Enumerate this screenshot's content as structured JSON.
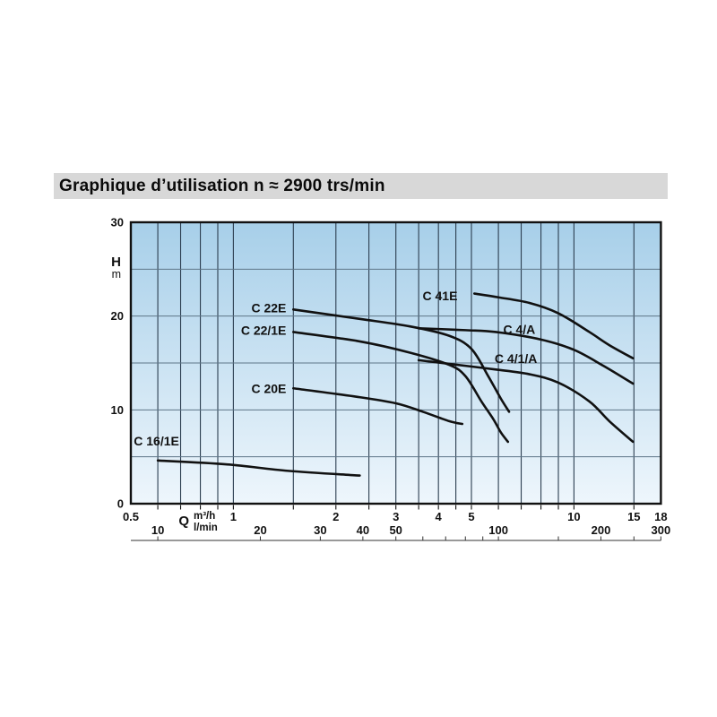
{
  "title": "Graphique d’utilisation n ≈ 2900 trs/min",
  "colors": {
    "title_bg": "#d8d8d8",
    "text": "#111111",
    "plot_gradient_top": "#a7cfe9",
    "plot_gradient_bottom": "#eef6fc",
    "grid_vertical": "#2c3e50",
    "grid_horizontal": "#5d7587",
    "plot_border": "#111111",
    "curve": "#111111",
    "ruler": "#333333"
  },
  "chart_data": {
    "type": "line",
    "title": "Graphique d’utilisation n ≈ 2900 trs/min",
    "x_axis": {
      "label": "Q",
      "unit_top": "m³/h",
      "unit_bottom": "l/min",
      "scale": "log",
      "range_m3h": [
        0.5,
        18
      ],
      "ticks_m3h": [
        0.5,
        1,
        2,
        3,
        4,
        5,
        10,
        15,
        18
      ],
      "ticks_lmin": [
        10,
        20,
        30,
        40,
        50,
        100,
        200,
        300
      ],
      "ruler_ticks_lmin": [
        10,
        20,
        30,
        40,
        50,
        60,
        70,
        80,
        90,
        100,
        150,
        200,
        250,
        300
      ],
      "gridlines_m3h": [
        0.6,
        0.7,
        0.8,
        0.9,
        1,
        1.5,
        2,
        2.5,
        3,
        3.5,
        4,
        4.5,
        5,
        6,
        7,
        8,
        9,
        10,
        15
      ],
      "lmin_per_m3h": 16.6667
    },
    "y_axis": {
      "label": "H",
      "unit": "m",
      "range": [
        0,
        30
      ],
      "ticks": [
        0,
        10,
        20,
        30
      ],
      "gridlines": [
        5,
        10,
        15,
        20,
        25
      ]
    },
    "series": [
      {
        "name": "C 16/1E",
        "points": [
          [
            0.6,
            4.6
          ],
          [
            0.95,
            4.2
          ],
          [
            1.45,
            3.5
          ],
          [
            2.35,
            3.0
          ]
        ],
        "label": {
          "q": 0.51,
          "h": 6.2,
          "anchor": "start"
        }
      },
      {
        "name": "C 20E",
        "points": [
          [
            1.5,
            12.3
          ],
          [
            2.3,
            11.4
          ],
          [
            3.0,
            10.7
          ],
          [
            3.6,
            9.8
          ],
          [
            4.3,
            8.8
          ],
          [
            4.7,
            8.5
          ]
        ],
        "label": {
          "q": 1.43,
          "h": 11.8,
          "anchor": "end"
        }
      },
      {
        "name": "C 22/1E",
        "points": [
          [
            1.5,
            18.3
          ],
          [
            2.35,
            17.3
          ],
          [
            3.3,
            16.1
          ],
          [
            4.3,
            14.8
          ],
          [
            4.8,
            13.6
          ],
          [
            5.35,
            10.9
          ],
          [
            5.8,
            9.0
          ],
          [
            6.1,
            7.6
          ],
          [
            6.4,
            6.6
          ]
        ],
        "label": {
          "q": 1.43,
          "h": 18.0,
          "anchor": "end"
        }
      },
      {
        "name": "C 22E",
        "points": [
          [
            1.5,
            20.7
          ],
          [
            2.35,
            19.7
          ],
          [
            3.3,
            18.9
          ],
          [
            4.3,
            17.9
          ],
          [
            5.0,
            16.5
          ],
          [
            5.6,
            13.6
          ],
          [
            6.1,
            11.2
          ],
          [
            6.45,
            9.8
          ]
        ],
        "label": {
          "q": 1.43,
          "h": 20.4,
          "anchor": "end"
        }
      },
      {
        "name": "C 41E",
        "points": [
          [
            5.1,
            22.4
          ],
          [
            6.0,
            22.0
          ],
          [
            7.4,
            21.4
          ],
          [
            9.0,
            20.3
          ],
          [
            11.1,
            18.3
          ],
          [
            12.7,
            16.9
          ],
          [
            14.9,
            15.5
          ]
        ],
        "label": {
          "q": 4.55,
          "h": 21.7,
          "anchor": "end"
        }
      },
      {
        "name": "C 4/A",
        "points": [
          [
            3.5,
            18.7
          ],
          [
            4.8,
            18.5
          ],
          [
            5.9,
            18.3
          ],
          [
            8.0,
            17.5
          ],
          [
            10.0,
            16.4
          ],
          [
            12.2,
            14.7
          ],
          [
            14.9,
            12.8
          ]
        ],
        "label": {
          "q": 7.7,
          "h": 18.1,
          "anchor": "end"
        }
      },
      {
        "name": "C 4/1/A",
        "points": [
          [
            3.5,
            15.3
          ],
          [
            4.8,
            14.7
          ],
          [
            5.9,
            14.3
          ],
          [
            7.4,
            13.8
          ],
          [
            9.0,
            12.9
          ],
          [
            11.1,
            10.9
          ],
          [
            12.7,
            8.8
          ],
          [
            14.9,
            6.6
          ]
        ],
        "label": {
          "q": 7.8,
          "h": 15.0,
          "anchor": "end"
        }
      }
    ]
  }
}
